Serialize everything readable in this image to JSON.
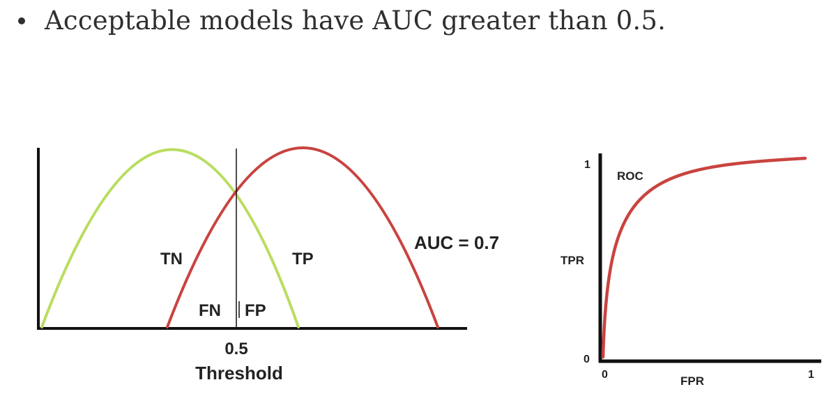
{
  "bullet": {
    "text": "Acceptable models have AUC greater than 0.5."
  },
  "distributions": {
    "negative_curve_label": "TN",
    "positive_curve_label": "TP",
    "false_negative_label": "FN",
    "false_positive_label": "FP",
    "auc_label": "AUC = 0.7",
    "threshold_value": "0.5",
    "threshold_label": "Threshold",
    "colors": {
      "negative_curve": "#b9dd5f",
      "positive_curve": "#c9433f"
    }
  },
  "roc": {
    "curve_label": "ROC",
    "y_axis_label": "TPR",
    "x_axis_label": "FPR",
    "y_max": "1",
    "origin_y": "0",
    "origin_x": "0",
    "x_max": "1",
    "color": "#c9433f"
  }
}
